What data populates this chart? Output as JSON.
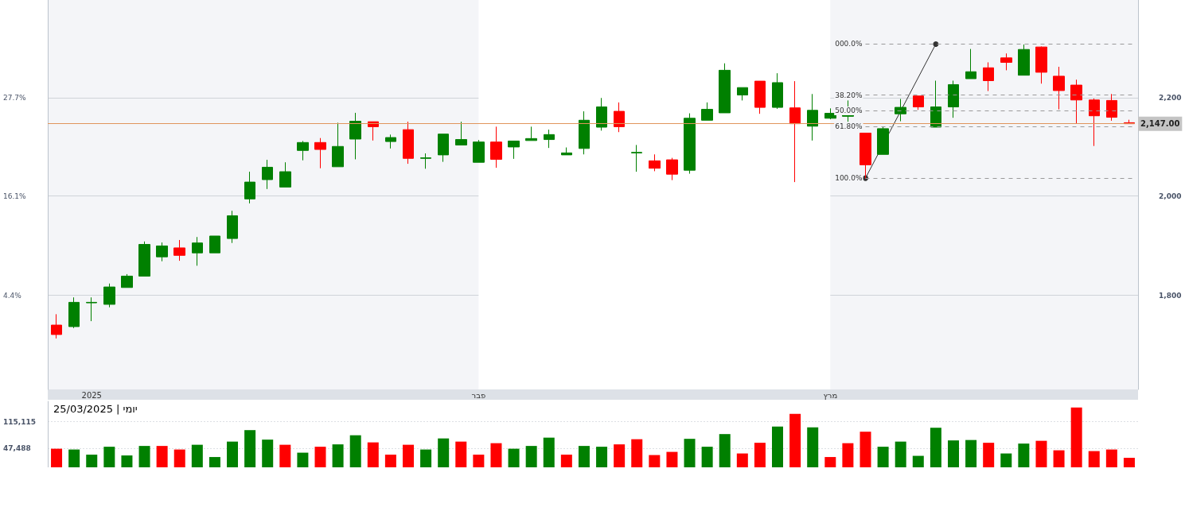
{
  "chart_data": [
    {
      "type": "candlestick",
      "categories": [
        null,
        null,
        "2025",
        null,
        null,
        null,
        null,
        null,
        null,
        null,
        null,
        null,
        null,
        null,
        null,
        null,
        null,
        null,
        null,
        null,
        null,
        null,
        null,
        null,
        "פבר",
        null,
        null,
        null,
        null,
        null,
        null,
        null,
        null,
        null,
        null,
        null,
        null,
        null,
        null,
        null,
        null,
        null,
        null,
        null,
        "מרץ",
        null,
        null,
        null,
        null,
        null,
        null,
        null,
        null,
        null,
        null,
        null,
        null,
        null,
        null,
        null,
        null,
        null
      ],
      "series": [
        {
          "axis": "y2",
          "ohlc": [
            [
              1740,
              1762,
              1713,
              1721
            ],
            [
              1737,
              1796,
              1734,
              1786
            ],
            [
              1785,
              1796,
              1748,
              1786
            ],
            [
              1782,
              1824,
              1776,
              1817
            ],
            [
              1816,
              1843,
              1816,
              1839
            ],
            [
              1839,
              1909,
              1839,
              1903
            ],
            [
              1878,
              1907,
              1869,
              1900
            ],
            [
              1896,
              1912,
              1870,
              1881
            ],
            [
              1886,
              1918,
              1860,
              1906
            ],
            [
              1886,
              1920,
              1886,
              1920
            ],
            [
              1915,
              1971,
              1906,
              1961
            ],
            [
              1995,
              2050,
              1986,
              2029
            ],
            [
              2034,
              2074,
              2015,
              2059
            ],
            [
              2019,
              2069,
              2019,
              2050
            ],
            [
              2093,
              2112,
              2073,
              2109
            ],
            [
              2109,
              2118,
              2057,
              2095
            ],
            [
              2060,
              2149,
              2060,
              2101
            ],
            [
              2116,
              2169,
              2075,
              2152
            ],
            [
              2151,
              2151,
              2113,
              2141
            ],
            [
              2111,
              2125,
              2097,
              2119
            ],
            [
              2135,
              2151,
              2066,
              2077
            ],
            [
              2077,
              2087,
              2056,
              2078
            ],
            [
              2084,
              2126,
              2070,
              2126
            ],
            [
              2104,
              2151,
              2104,
              2115
            ],
            [
              2069,
              2114,
              2069,
              2110
            ],
            [
              2110,
              2141,
              2058,
              2075
            ],
            [
              2100,
              2112,
              2076,
              2112
            ],
            [
              2113,
              2141,
              2113,
              2117
            ],
            [
              2115,
              2135,
              2098,
              2125
            ],
            [
              2084,
              2099,
              2084,
              2088
            ],
            [
              2097,
              2172,
              2085,
              2154
            ],
            [
              2140,
              2199,
              2133,
              2181
            ],
            [
              2172,
              2190,
              2130,
              2141
            ],
            [
              2088,
              2104,
              2050,
              2089
            ],
            [
              2072,
              2085,
              2051,
              2057
            ],
            [
              2074,
              2078,
              2033,
              2045
            ],
            [
              2053,
              2168,
              2046,
              2158
            ],
            [
              2154,
              2190,
              2154,
              2176
            ],
            [
              2169,
              2269,
              2169,
              2255
            ],
            [
              2205,
              2220,
              2194,
              2220
            ],
            [
              2233,
              2233,
              2167,
              2180
            ],
            [
              2180,
              2249,
              2177,
              2230
            ],
            [
              2179,
              2233,
              2029,
              2147
            ],
            [
              2142,
              2207,
              2113,
              2174
            ],
            [
              2158,
              2178,
              2156,
              2168
            ],
            [
              2162,
              2194,
              2151,
              2166
            ],
            [
              2128,
              2128,
              2036,
              2064
            ],
            [
              2085,
              2140,
              2085,
              2137
            ],
            [
              2167,
              2197,
              2152,
              2180
            ],
            [
              2203,
              2203,
              2175,
              2181
            ],
            [
              2140,
              2234,
              2140,
              2181
            ],
            [
              2181,
              2234,
              2159,
              2226
            ],
            [
              2238,
              2298,
              2238,
              2252
            ],
            [
              2260,
              2271,
              2213,
              2234
            ],
            [
              2280,
              2289,
              2255,
              2271
            ],
            [
              2245,
              2307,
              2245,
              2297
            ],
            [
              2302,
              2303,
              2228,
              2251
            ],
            [
              2243,
              2262,
              2176,
              2214
            ],
            [
              2225,
              2236,
              2147,
              2195
            ],
            [
              2195,
              2198,
              2102,
              2163
            ],
            [
              2194,
              2207,
              2153,
              2160
            ],
            [
              2149,
              2155,
              2147,
              2147
            ]
          ],
          "colors": [
            "#ff0000",
            "#008000",
            "#008000",
            "#008000",
            "#008000",
            "#008000",
            "#008000",
            "#ff0000",
            "#008000",
            "#008000",
            "#008000",
            "#008000",
            "#008000",
            "#008000",
            "#008000",
            "#ff0000",
            "#008000",
            "#008000",
            "#ff0000",
            "#008000",
            "#ff0000",
            "#008000",
            "#008000",
            "#008000",
            "#008000",
            "#ff0000",
            "#008000",
            "#008000",
            "#008000",
            "#008000",
            "#008000",
            "#008000",
            "#ff0000",
            "#008000",
            "#ff0000",
            "#ff0000",
            "#008000",
            "#008000",
            "#008000",
            "#008000",
            "#ff0000",
            "#008000",
            "#ff0000",
            "#008000",
            "#008000",
            "#008000",
            "#ff0000",
            "#008000",
            "#008000",
            "#ff0000",
            "#008000",
            "#008000",
            "#008000",
            "#ff0000",
            "#ff0000",
            "#008000",
            "#ff0000",
            "#ff0000",
            "#ff0000",
            "#ff0000",
            "#ff0000",
            "#ff0000"
          ]
        },
        {
          "type": "line",
          "axis": "y2",
          "color": "#333333",
          "marker": "circle",
          "values": [
            null,
            null,
            null,
            null,
            null,
            null,
            null,
            null,
            null,
            null,
            null,
            null,
            null,
            null,
            null,
            null,
            null,
            null,
            null,
            null,
            null,
            null,
            null,
            null,
            null,
            null,
            null,
            null,
            null,
            null,
            null,
            null,
            null,
            null,
            null,
            null,
            null,
            null,
            null,
            null,
            null,
            null,
            null,
            null,
            null,
            null,
            2037,
            null,
            null,
            null,
            2308,
            null,
            null,
            null,
            null,
            null,
            null,
            null,
            null,
            null,
            null,
            null
          ]
        }
      ],
      "ylim": [
        -6.7,
        39.2
      ],
      "yticks": [
        {
          "value": 4.4,
          "label": "4.4%"
        },
        {
          "value": 16.1,
          "label": "16.1%"
        },
        {
          "value": 27.7,
          "label": "27.7%"
        }
      ],
      "y2lim": [
        1610,
        2397
      ],
      "y2ticks": [
        {
          "value": 1800,
          "label": "1,800"
        },
        {
          "value": 2000,
          "label": "2,000"
        },
        {
          "value": 2200,
          "label": "2,200"
        }
      ],
      "grid": "y",
      "ref_lines": [
        {
          "axis": "y2",
          "value": 2147,
          "label": "2,147.00",
          "color": "#e0955c",
          "line_style": "solid"
        },
        {
          "axis": "y2",
          "value": 2308,
          "color": "#9a9a9a",
          "line_style": "dashed"
        },
        {
          "axis": "y2",
          "value": 2205,
          "color": "#9a9a9a",
          "line_style": "dashed"
        },
        {
          "axis": "y2",
          "value": 2173,
          "color": "#9a9a9a",
          "line_style": "dashed"
        },
        {
          "axis": "y2",
          "value": 2141,
          "color": "#9a9a9a",
          "line_style": "dashed"
        },
        {
          "axis": "y2",
          "value": 2037,
          "color": "#9a9a9a",
          "line_style": "dashed"
        }
      ],
      "annotations": [
        "000.0%",
        "38.20%",
        "50.00%",
        "61.80%",
        "100.0%"
      ],
      "bands": [
        {
          "axis": "x",
          "from": "פבר",
          "to": "מרץ",
          "color": "#ffffff"
        }
      ]
    },
    {
      "type": "bar",
      "title": "25/03/2025 | יומי",
      "categories": [
        null,
        null,
        null,
        null,
        null,
        null,
        null,
        null,
        null,
        null,
        null,
        null,
        null,
        null,
        null,
        null,
        null,
        null,
        null,
        null,
        null,
        null,
        null,
        null,
        null,
        null,
        null,
        null,
        null,
        null,
        null,
        null,
        null,
        null,
        null,
        null,
        null,
        null,
        null,
        null,
        null,
        null,
        null,
        null,
        null,
        null,
        null,
        null,
        null,
        null,
        null,
        null,
        null,
        null,
        null,
        null,
        null,
        null,
        null,
        null,
        null,
        null
      ],
      "values": [
        47000,
        45000,
        32000,
        52000,
        30000,
        54000,
        54000,
        45000,
        57000,
        26000,
        65000,
        94000,
        70000,
        57000,
        37000,
        52000,
        58000,
        81000,
        63000,
        32000,
        57000,
        45000,
        73000,
        65000,
        32000,
        61000,
        47000,
        54000,
        75000,
        32000,
        54000,
        52000,
        58000,
        71000,
        31000,
        39000,
        72000,
        52000,
        84000,
        35000,
        62000,
        103000,
        135000,
        101000,
        26000,
        61000,
        90000,
        52000,
        65000,
        29000,
        100000,
        68000,
        69000,
        62000,
        35000,
        60000,
        67000,
        43000,
        151000,
        41000,
        45000,
        24000
      ],
      "colors": [
        "#ff0000",
        "#008000",
        "#008000",
        "#008000",
        "#008000",
        "#008000",
        "#ff0000",
        "#ff0000",
        "#008000",
        "#008000",
        "#008000",
        "#008000",
        "#008000",
        "#ff0000",
        "#008000",
        "#ff0000",
        "#008000",
        "#008000",
        "#ff0000",
        "#ff0000",
        "#ff0000",
        "#008000",
        "#008000",
        "#ff0000",
        "#ff0000",
        "#ff0000",
        "#008000",
        "#008000",
        "#008000",
        "#ff0000",
        "#008000",
        "#008000",
        "#ff0000",
        "#ff0000",
        "#ff0000",
        "#ff0000",
        "#008000",
        "#008000",
        "#008000",
        "#ff0000",
        "#ff0000",
        "#008000",
        "#ff0000",
        "#008000",
        "#ff0000",
        "#ff0000",
        "#ff0000",
        "#008000",
        "#008000",
        "#008000",
        "#008000",
        "#008000",
        "#008000",
        "#ff0000",
        "#008000",
        "#008000",
        "#ff0000",
        "#ff0000",
        "#ff0000",
        "#ff0000",
        "#ff0000",
        "#ff0000"
      ],
      "ylim": [
        0,
        166700
      ],
      "yticks": [
        {
          "value": 47488,
          "label": "47,488"
        },
        {
          "value": 115115,
          "label": "115,115"
        }
      ],
      "grid": "y",
      "tick_labels": "y"
    }
  ]
}
